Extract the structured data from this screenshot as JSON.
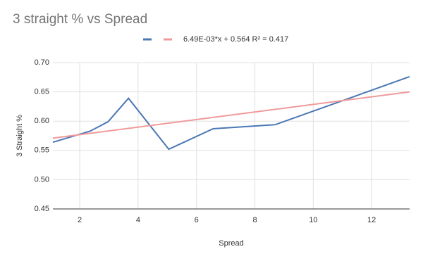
{
  "chart_data": {
    "type": "line",
    "title": "3 straight % vs Spread",
    "x_label": "Spread",
    "y_label": "3 Straight %",
    "series": [
      {
        "color": "#4a78b5",
        "x": [
          1.08,
          2.36,
          2.97,
          3.67,
          5.05,
          6.57,
          8.7,
          13.3
        ],
        "values": [
          0.564,
          0.583,
          0.599,
          0.639,
          0.552,
          0.587,
          0.594,
          0.676
        ]
      },
      {
        "name": "6.49E-03*x + 0.564 R² = 0.417",
        "color": "#f09a9a",
        "x": [
          1.08,
          13.3
        ],
        "values": [
          0.571,
          0.65
        ]
      }
    ],
    "xlim": [
      1.08,
      13.3
    ],
    "xticks": [
      2,
      4,
      6,
      8,
      10,
      12
    ],
    "ylim": [
      0.45,
      0.7
    ],
    "yticks": [
      0.45,
      {
        "value": 0.5,
        "label": "0.50"
      },
      0.55,
      {
        "value": 0.6,
        "label": "0.60"
      },
      0.65,
      {
        "value": 0.7,
        "label": "0.70"
      }
    ],
    "grid": true,
    "legend": "top"
  }
}
